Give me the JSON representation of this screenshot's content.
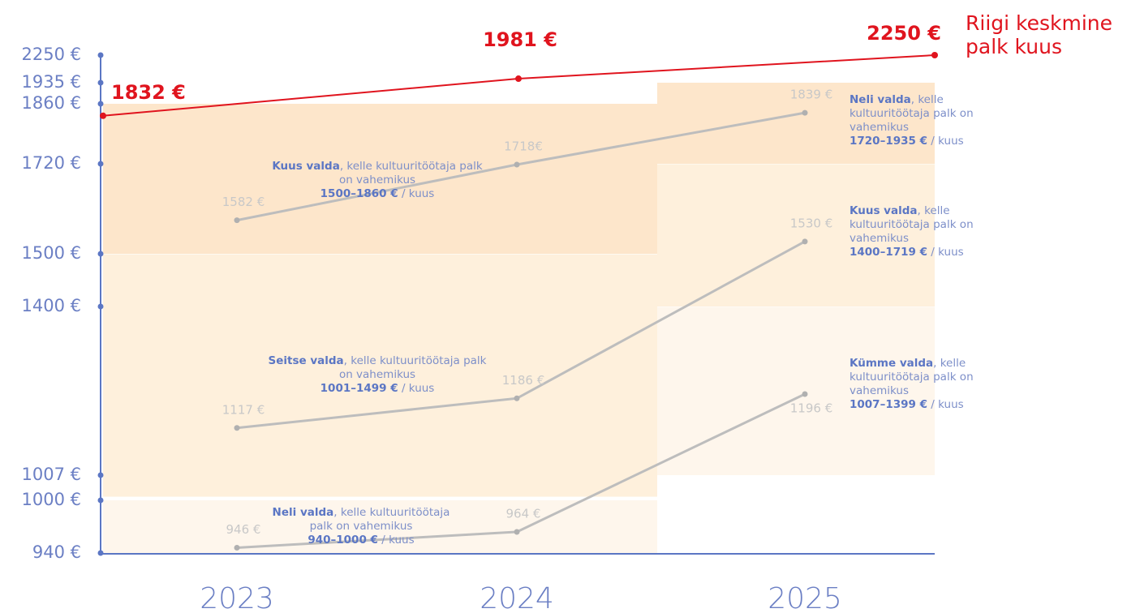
{
  "chart_data": {
    "type": "line",
    "categories": [
      "2023",
      "2024",
      "2025"
    ],
    "ylim": [
      940,
      2250
    ],
    "yticks": [
      {
        "value": 2250,
        "label": "2250 €"
      },
      {
        "value": 1935,
        "label": "1935 €"
      },
      {
        "value": 1860,
        "label": "1860 €"
      },
      {
        "value": 1720,
        "label": "1720 €"
      },
      {
        "value": 1500,
        "label": "1500 €"
      },
      {
        "value": 1400,
        "label": "1400 €"
      },
      {
        "value": 1007,
        "label": "1007 €"
      },
      {
        "value": 1000,
        "label": "1000 €"
      },
      {
        "value": 940,
        "label": "940 €"
      }
    ],
    "series": [
      {
        "name": "Riigi keskmine palk kuus",
        "color": "#e0141e",
        "values": [
          1832,
          1981,
          2250
        ],
        "value_labels": [
          "1832 €",
          "1981 €",
          "2250 €"
        ]
      },
      {
        "color": "#bdbdbd",
        "values": [
          1582,
          1718,
          1839
        ],
        "value_labels": [
          "1582 €",
          "1718€",
          "1839 €"
        ]
      },
      {
        "color": "#bdbdbd",
        "values": [
          1117,
          1186,
          1530
        ],
        "value_labels": [
          "1117 €",
          "1186 €",
          "1530 €"
        ]
      },
      {
        "color": "#bdbdbd",
        "values": [
          946,
          964,
          1196
        ],
        "value_labels": [
          "946 €",
          "964 €",
          "1196 €"
        ]
      }
    ],
    "bands": [
      {
        "low": 1500,
        "high": 1860,
        "color": "#fde6cb",
        "lead": "Kuus valda",
        "text": ", kelle kultuuritöötaja palk on vahemikus",
        "range": "1500–1860 €",
        "unit": "/ kuus"
      },
      {
        "low": 1001,
        "high": 1499,
        "color": "#fef0dc",
        "lead": "Seitse valda",
        "text": ", kelle kultuuritöötaja palk on vahemikus",
        "range": "1001–1499 €",
        "unit": "/ kuus"
      },
      {
        "low": 940,
        "high": 1000,
        "color": "#fef6ec",
        "lead": "Neli valda",
        "text": ", kelle kultuuritöötaja palk on vahemikus",
        "range": "940–1000 €",
        "unit": "/ kuus"
      },
      {
        "low": 1720,
        "high": 1935,
        "color": "#fde6cb",
        "lead": "Neli valda",
        "text": ", kelle kultuuritöötaja palk on vahemikus",
        "range": "1720–1935 €",
        "unit": "/ kuus"
      },
      {
        "low": 1400,
        "high": 1719,
        "color": "#fef0dc",
        "lead": "Kuus valda",
        "text": ", kelle kultuuritöötaja palk on vahemikus",
        "range": "1400–1719 €",
        "unit": "/ kuus"
      },
      {
        "low": 1007,
        "high": 1399,
        "color": "#fef6ec",
        "lead": "Kümme valda",
        "text": ", kelle kultuuritöötaja palk on vahemikus",
        "range": "1007–1399 €",
        "unit": "/ kuus"
      }
    ]
  }
}
